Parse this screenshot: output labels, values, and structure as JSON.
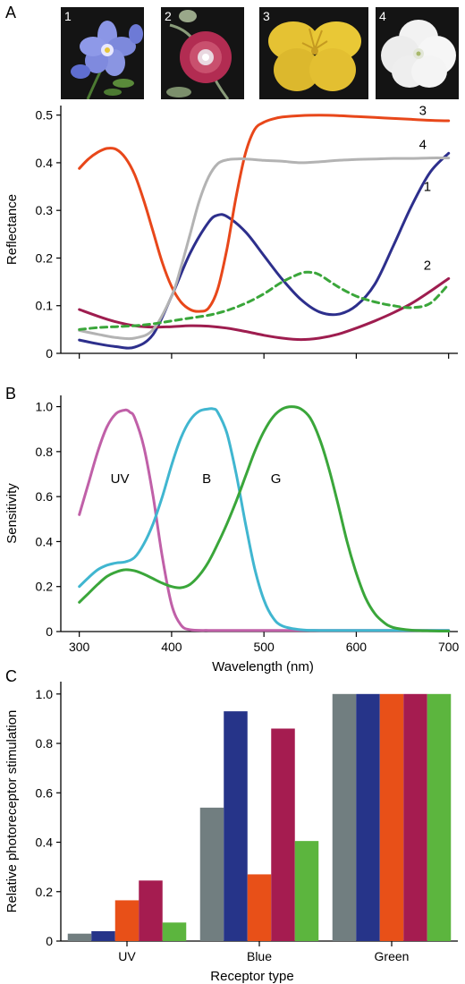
{
  "panels": {
    "a": "A",
    "b": "B",
    "c": "C"
  },
  "flowers": [
    {
      "number": "1",
      "name": "blue-flower",
      "color": "#7f8fe0"
    },
    {
      "number": "2",
      "name": "magenta-flower",
      "color": "#b0304f"
    },
    {
      "number": "3",
      "name": "yellow-flower",
      "color": "#e8c630"
    },
    {
      "number": "4",
      "name": "white-flower",
      "color": "#f4f4f4"
    }
  ],
  "chart_data": [
    {
      "type": "line",
      "panel": "A",
      "ylabel": "Reflectance",
      "xlim": [
        280,
        710
      ],
      "ylim": [
        0,
        0.52
      ],
      "xticks": [
        300,
        400,
        500,
        600,
        700
      ],
      "yticks": [
        "0",
        "0.1",
        "0.2",
        "0.3",
        "0.4",
        "0.5"
      ],
      "ytick_values": [
        0,
        0.1,
        0.2,
        0.3,
        0.4,
        0.5
      ],
      "series": [
        {
          "name": "1",
          "color": "#2d2f8c",
          "dashed": false,
          "label_at": [
            677,
            0.35
          ],
          "x": [
            300,
            320,
            340,
            360,
            380,
            400,
            420,
            440,
            450,
            460,
            480,
            500,
            520,
            540,
            560,
            580,
            600,
            620,
            640,
            660,
            680,
            700
          ],
          "y": [
            0.028,
            0.02,
            0.014,
            0.013,
            0.04,
            0.12,
            0.21,
            0.275,
            0.29,
            0.287,
            0.255,
            0.205,
            0.155,
            0.113,
            0.087,
            0.082,
            0.1,
            0.145,
            0.225,
            0.31,
            0.38,
            0.42
          ]
        },
        {
          "name": "2",
          "color": "#9e1d4f",
          "dashed": false,
          "label_at": [
            677,
            0.185
          ],
          "x": [
            300,
            320,
            340,
            360,
            380,
            400,
            420,
            440,
            460,
            480,
            500,
            520,
            540,
            560,
            580,
            600,
            620,
            640,
            660,
            680,
            700
          ],
          "y": [
            0.092,
            0.078,
            0.066,
            0.058,
            0.055,
            0.056,
            0.058,
            0.057,
            0.053,
            0.046,
            0.038,
            0.032,
            0.029,
            0.032,
            0.04,
            0.053,
            0.068,
            0.085,
            0.105,
            0.13,
            0.157
          ]
        },
        {
          "name": "3",
          "color": "#e8471a",
          "dashed": false,
          "label_at": [
            672,
            0.51
          ],
          "x": [
            300,
            310,
            320,
            330,
            340,
            350,
            360,
            370,
            380,
            390,
            400,
            410,
            420,
            430,
            440,
            450,
            460,
            470,
            480,
            490,
            500,
            510,
            520,
            540,
            560,
            580,
            600,
            620,
            640,
            660,
            680,
            700
          ],
          "y": [
            0.388,
            0.408,
            0.422,
            0.43,
            0.428,
            0.41,
            0.375,
            0.32,
            0.255,
            0.19,
            0.14,
            0.108,
            0.092,
            0.088,
            0.095,
            0.135,
            0.22,
            0.33,
            0.42,
            0.47,
            0.485,
            0.492,
            0.496,
            0.499,
            0.5,
            0.499,
            0.497,
            0.495,
            0.493,
            0.491,
            0.489,
            0.488
          ]
        },
        {
          "name": "4",
          "color": "#b3b3b3",
          "dashed": false,
          "label_at": [
            672,
            0.438
          ],
          "x": [
            300,
            320,
            340,
            360,
            380,
            400,
            410,
            420,
            430,
            440,
            450,
            460,
            470,
            480,
            500,
            520,
            540,
            560,
            580,
            600,
            620,
            640,
            660,
            680,
            700
          ],
          "y": [
            0.048,
            0.04,
            0.033,
            0.032,
            0.05,
            0.12,
            0.18,
            0.25,
            0.32,
            0.37,
            0.398,
            0.406,
            0.408,
            0.408,
            0.405,
            0.403,
            0.4,
            0.402,
            0.405,
            0.407,
            0.408,
            0.409,
            0.409,
            0.41,
            0.41
          ]
        },
        {
          "name": "",
          "color": "#3aa63a",
          "dashed": true,
          "label_at": null,
          "x": [
            300,
            320,
            340,
            360,
            380,
            400,
            420,
            440,
            460,
            480,
            500,
            520,
            540,
            550,
            560,
            580,
            600,
            620,
            640,
            660,
            680,
            700
          ],
          "y": [
            0.05,
            0.054,
            0.056,
            0.058,
            0.062,
            0.068,
            0.074,
            0.08,
            0.09,
            0.105,
            0.125,
            0.15,
            0.168,
            0.17,
            0.165,
            0.14,
            0.12,
            0.108,
            0.1,
            0.096,
            0.105,
            0.145
          ]
        }
      ]
    },
    {
      "type": "line",
      "panel": "B",
      "ylabel": "Sensitivity",
      "xlabel": "Wavelength (nm)",
      "xlim": [
        280,
        710
      ],
      "ylim": [
        0,
        1.05
      ],
      "xticks": [
        300,
        400,
        500,
        600,
        700
      ],
      "yticks": [
        "0",
        "0.2",
        "0.4",
        "0.6",
        "0.8",
        "1.0"
      ],
      "ytick_values": [
        0,
        0.2,
        0.4,
        0.6,
        0.8,
        1.0
      ],
      "series": [
        {
          "name": "UV",
          "color": "#c060a8",
          "dashed": false,
          "label_at": [
            344,
            0.68
          ],
          "x": [
            300,
            310,
            320,
            330,
            340,
            350,
            355,
            360,
            370,
            380,
            390,
            400,
            410,
            420,
            440,
            460,
            500,
            600,
            700
          ],
          "y": [
            0.52,
            0.66,
            0.8,
            0.91,
            0.97,
            0.985,
            0.975,
            0.95,
            0.82,
            0.6,
            0.33,
            0.12,
            0.03,
            0.008,
            0.005,
            0.005,
            0.005,
            0.005,
            0.005
          ]
        },
        {
          "name": "B",
          "color": "#40b6d0",
          "dashed": false,
          "label_at": [
            438,
            0.68
          ],
          "x": [
            300,
            310,
            320,
            330,
            340,
            350,
            360,
            370,
            380,
            390,
            400,
            410,
            420,
            430,
            440,
            445,
            450,
            460,
            470,
            480,
            490,
            500,
            510,
            520,
            540,
            560,
            600,
            700
          ],
          "y": [
            0.2,
            0.24,
            0.275,
            0.295,
            0.305,
            0.31,
            0.33,
            0.39,
            0.48,
            0.6,
            0.74,
            0.86,
            0.94,
            0.98,
            0.99,
            0.99,
            0.975,
            0.88,
            0.7,
            0.48,
            0.28,
            0.14,
            0.06,
            0.025,
            0.008,
            0.005,
            0.005,
            0.005
          ]
        },
        {
          "name": "G",
          "color": "#3aa63a",
          "dashed": false,
          "label_at": [
            513,
            0.68
          ],
          "x": [
            300,
            310,
            320,
            330,
            340,
            350,
            360,
            370,
            380,
            390,
            400,
            410,
            420,
            430,
            440,
            450,
            460,
            470,
            480,
            490,
            500,
            510,
            520,
            530,
            540,
            550,
            560,
            570,
            580,
            590,
            600,
            610,
            620,
            630,
            640,
            660,
            680,
            700
          ],
          "y": [
            0.13,
            0.17,
            0.21,
            0.245,
            0.265,
            0.275,
            0.27,
            0.255,
            0.235,
            0.215,
            0.2,
            0.195,
            0.21,
            0.25,
            0.31,
            0.39,
            0.48,
            0.58,
            0.69,
            0.8,
            0.89,
            0.955,
            0.99,
            1.0,
            0.99,
            0.95,
            0.86,
            0.73,
            0.57,
            0.4,
            0.26,
            0.15,
            0.08,
            0.04,
            0.018,
            0.006,
            0.003,
            0.002
          ]
        }
      ]
    },
    {
      "type": "bar",
      "panel": "C",
      "ylabel": "Relative photoreceptor stimulation",
      "xlabel": "Receptor type",
      "categories": [
        "UV",
        "Blue",
        "Green"
      ],
      "ylim": [
        0,
        1.05
      ],
      "yticks": [
        "0",
        "0.2",
        "0.4",
        "0.6",
        "0.8",
        "1.0"
      ],
      "ytick_values": [
        0,
        0.2,
        0.4,
        0.6,
        0.8,
        1.0
      ],
      "series": [
        {
          "name": "",
          "color": "#717e80",
          "values": [
            0.03,
            0.54,
            1.0
          ]
        },
        {
          "name": "",
          "color": "#263489",
          "values": [
            0.04,
            0.93,
            1.0
          ]
        },
        {
          "name": "",
          "color": "#e85018",
          "values": [
            0.165,
            0.27,
            1.0
          ]
        },
        {
          "name": "",
          "color": "#a51c50",
          "values": [
            0.245,
            0.86,
            1.0
          ]
        },
        {
          "name": "",
          "color": "#5cb53e",
          "values": [
            0.075,
            0.405,
            1.0
          ]
        }
      ]
    }
  ]
}
